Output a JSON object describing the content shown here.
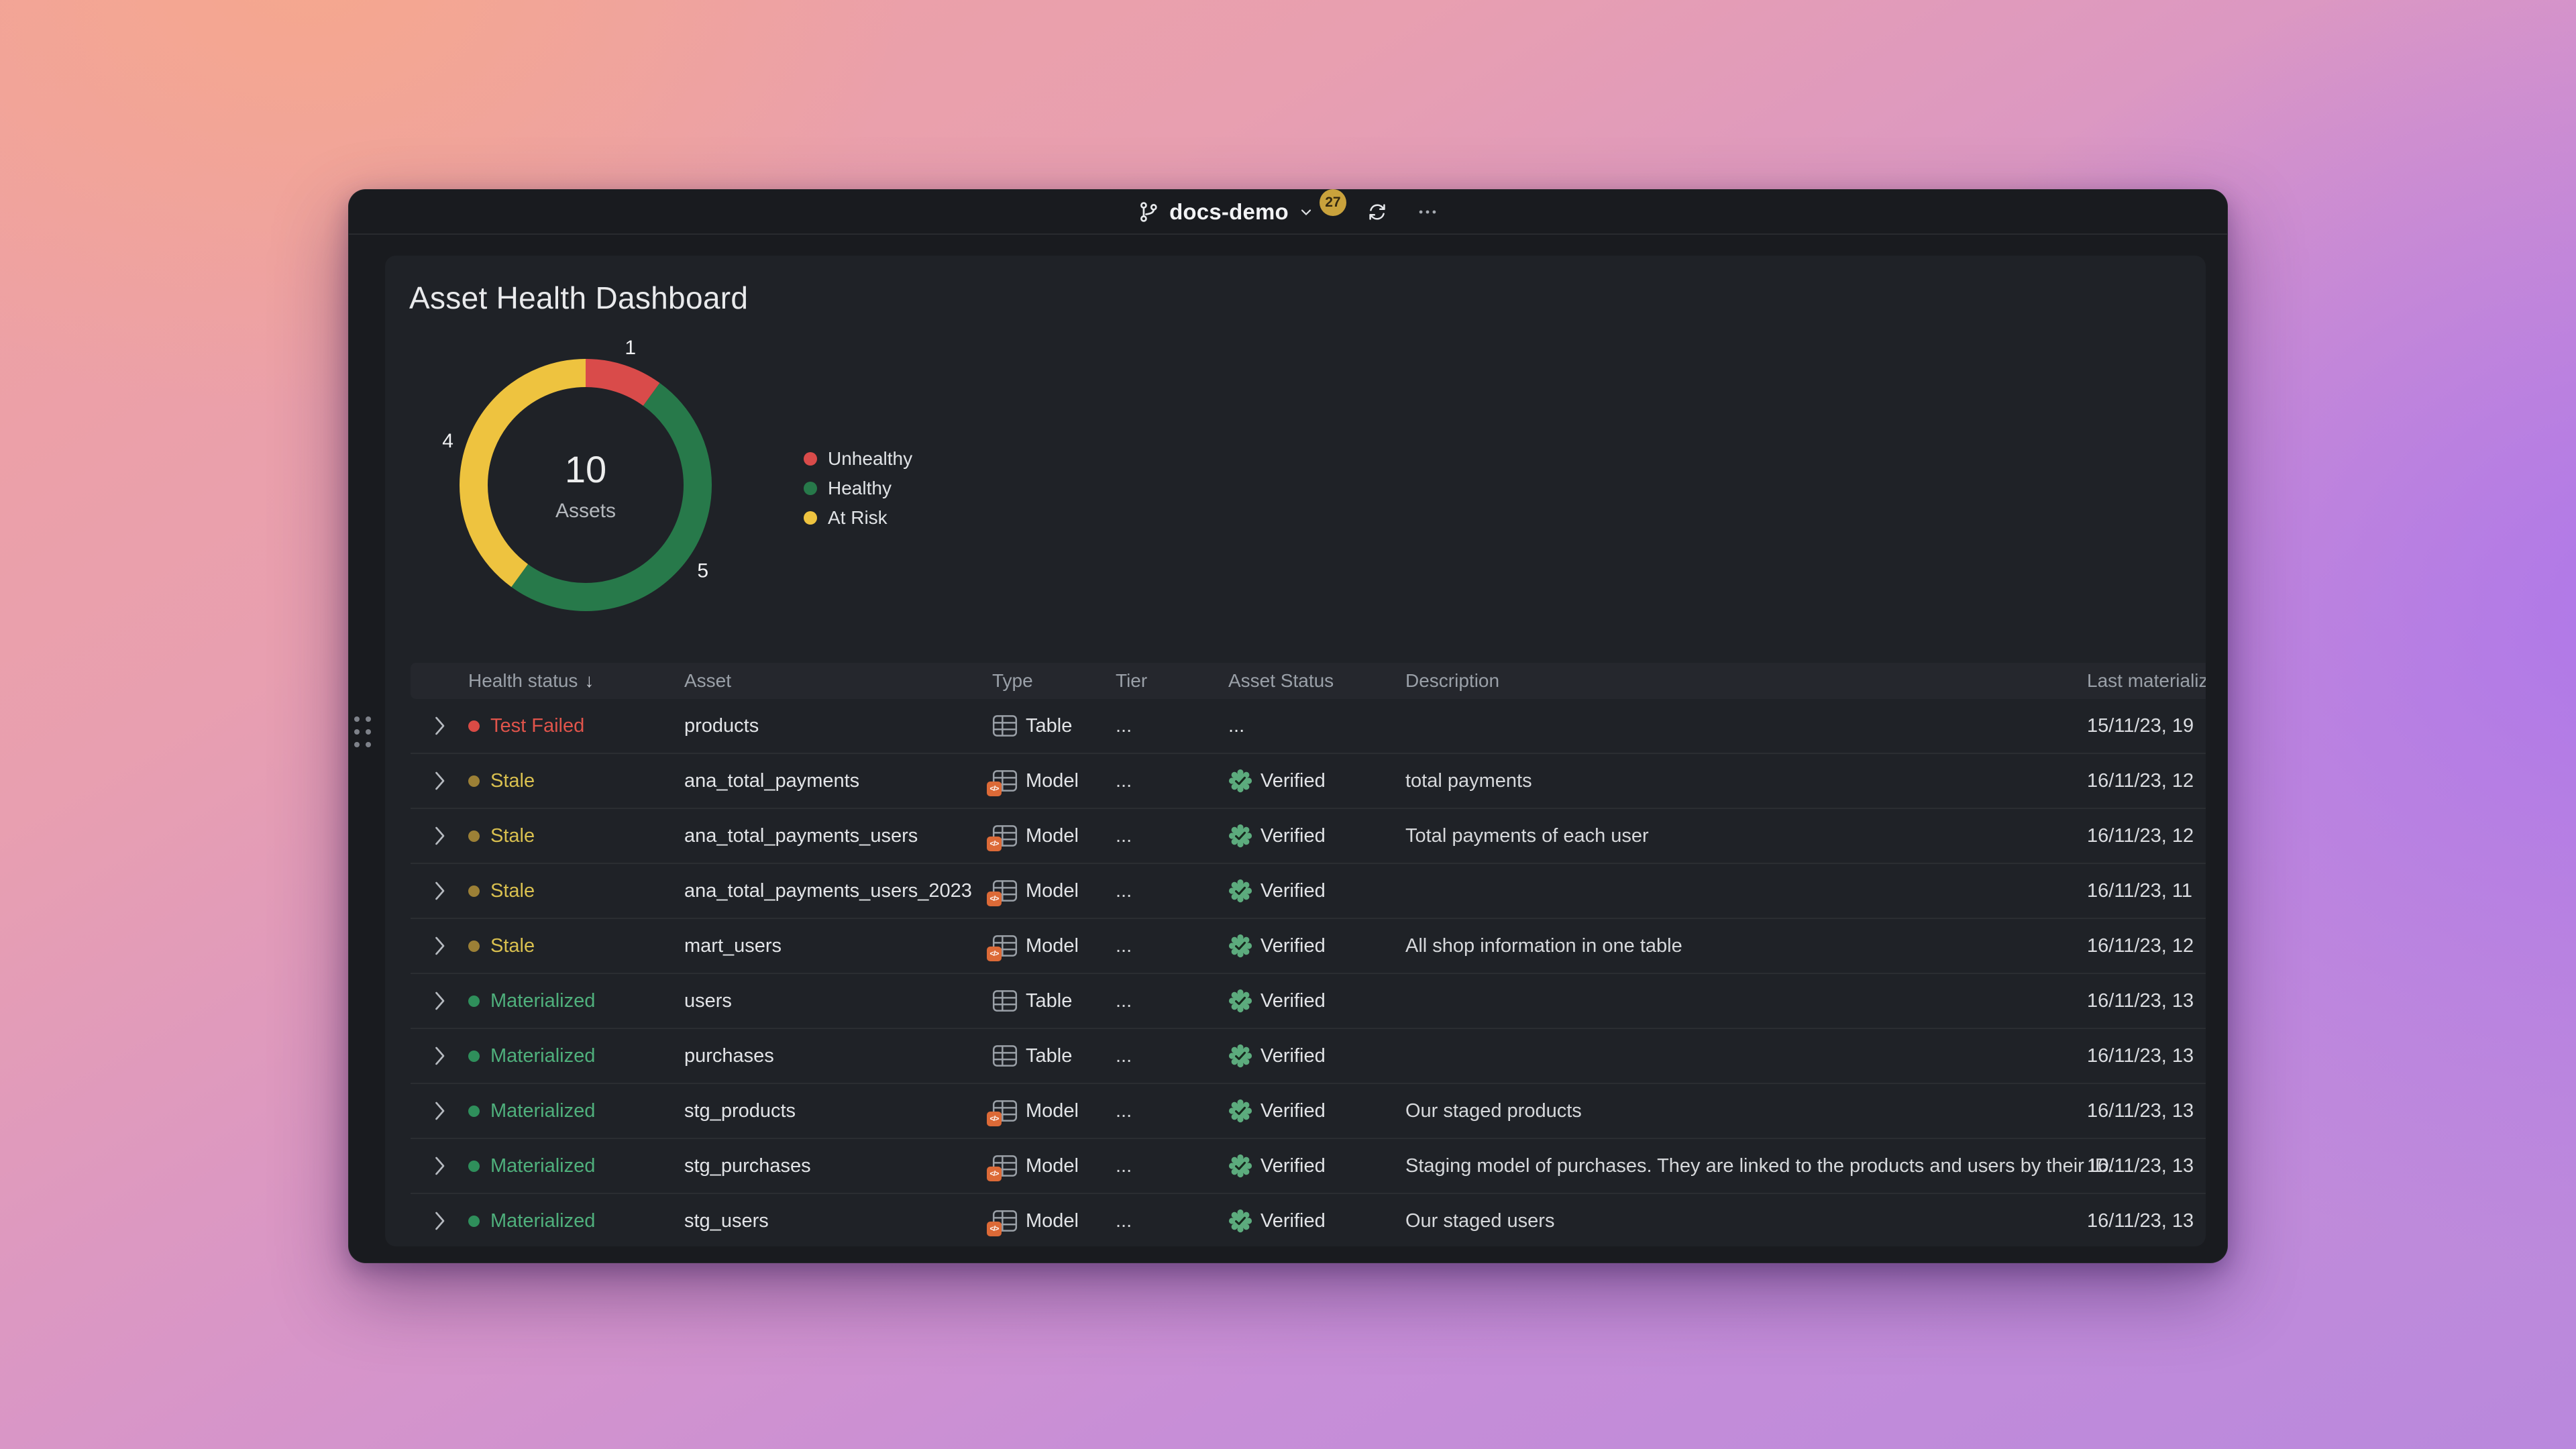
{
  "titlebar": {
    "branch_name": "docs-demo",
    "badge_count": "27"
  },
  "dashboard": {
    "title": "Asset Health Dashboard"
  },
  "chart_data": {
    "type": "pie",
    "variant": "donut",
    "title": "Asset Health Dashboard",
    "center_value": "10",
    "center_label": "Assets",
    "total": 10,
    "legend_position": "right",
    "segments": [
      {
        "label": "Unhealthy",
        "value": 1,
        "color": "#d94b4a"
      },
      {
        "label": "Healthy",
        "value": 5,
        "color": "#27794a"
      },
      {
        "label": "At Risk",
        "value": 4,
        "color": "#eec33f"
      }
    ]
  },
  "table": {
    "columns": [
      "Health status",
      "Asset",
      "Type",
      "Tier",
      "Asset Status",
      "Description",
      "Last materialized"
    ],
    "sort": {
      "column": "Health status",
      "direction": "down"
    },
    "rows": [
      {
        "health_status": "Test Failed",
        "status_key": "test_failed",
        "asset": "products",
        "type": "Table",
        "tier": "...",
        "verified": false,
        "asset_status": "...",
        "description": "",
        "last_materialized": "15/11/23, 19"
      },
      {
        "health_status": "Stale",
        "status_key": "stale",
        "asset": "ana_total_payments",
        "type": "Model",
        "tier": "...",
        "verified": true,
        "asset_status": "Verified",
        "description": "total payments",
        "last_materialized": "16/11/23, 12"
      },
      {
        "health_status": "Stale",
        "status_key": "stale",
        "asset": "ana_total_payments_users",
        "type": "Model",
        "tier": "...",
        "verified": true,
        "asset_status": "Verified",
        "description": "Total payments of each user",
        "last_materialized": "16/11/23, 12"
      },
      {
        "health_status": "Stale",
        "status_key": "stale",
        "asset": "ana_total_payments_users_2023",
        "type": "Model",
        "tier": "...",
        "verified": true,
        "asset_status": "Verified",
        "description": "",
        "last_materialized": "16/11/23, 11"
      },
      {
        "health_status": "Stale",
        "status_key": "stale",
        "asset": "mart_users",
        "type": "Model",
        "tier": "...",
        "verified": true,
        "asset_status": "Verified",
        "description": "All shop information in one table",
        "last_materialized": "16/11/23, 12"
      },
      {
        "health_status": "Materialized",
        "status_key": "materialized",
        "asset": "users",
        "type": "Table",
        "tier": "...",
        "verified": true,
        "asset_status": "Verified",
        "description": "",
        "last_materialized": "16/11/23, 13"
      },
      {
        "health_status": "Materialized",
        "status_key": "materialized",
        "asset": "purchases",
        "type": "Table",
        "tier": "...",
        "verified": true,
        "asset_status": "Verified",
        "description": "",
        "last_materialized": "16/11/23, 13"
      },
      {
        "health_status": "Materialized",
        "status_key": "materialized",
        "asset": "stg_products",
        "type": "Model",
        "tier": "...",
        "verified": true,
        "asset_status": "Verified",
        "description": "Our staged products",
        "last_materialized": "16/11/23, 13"
      },
      {
        "health_status": "Materialized",
        "status_key": "materialized",
        "asset": "stg_purchases",
        "type": "Model",
        "tier": "...",
        "verified": true,
        "asset_status": "Verified",
        "description": "Staging model of purchases. They are linked to the products and users by their ID.",
        "last_materialized": "16/11/23, 13"
      },
      {
        "health_status": "Materialized",
        "status_key": "materialized",
        "asset": "stg_users",
        "type": "Model",
        "tier": "...",
        "verified": true,
        "asset_status": "Verified",
        "description": "Our staged users",
        "last_materialized": "16/11/23, 13"
      }
    ]
  },
  "status_styles": {
    "test_failed": {
      "dot": "#d94b45",
      "text": "#e0544b"
    },
    "stale": {
      "dot": "#9c8036",
      "text": "#d9c04f"
    },
    "materialized": {
      "dot": "#2f8f5b",
      "text": "#4fb07c"
    }
  },
  "icons": {
    "model_badge_glyph": "</>"
  },
  "colors": {
    "window_frame": "#191b1f",
    "panel": "#1f2227",
    "table_header_band": "#25272d",
    "notification_badge": "#c9a23c",
    "verified_seal": "#5cab7d",
    "model_orange": "#dc6a37"
  }
}
